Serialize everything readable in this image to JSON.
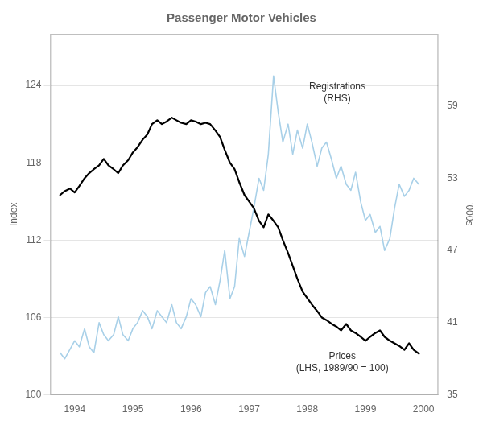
{
  "chart_data": {
    "type": "line",
    "title": "Passenger Motor Vehicles",
    "ylabel": "Index",
    "y2label": "'000s",
    "annotations": [
      "Registrations\n(RHS)",
      "Prices\n(LHS, 1989/90 = 100)"
    ],
    "xlim": [
      1993.58,
      2000.25
    ],
    "xticks": [
      1994,
      1995,
      1996,
      1997,
      1998,
      1999,
      2000
    ],
    "ylim": [
      100,
      128
    ],
    "yticks": [
      100,
      106,
      112,
      118,
      124
    ],
    "y2lim": [
      35,
      65
    ],
    "y2ticks": [
      35,
      41,
      47,
      53,
      59
    ],
    "grid": true,
    "x": [
      1993.75,
      1993.83,
      1993.92,
      1994.0,
      1994.08,
      1994.17,
      1994.25,
      1994.33,
      1994.42,
      1994.5,
      1994.58,
      1994.67,
      1994.75,
      1994.83,
      1994.92,
      1995.0,
      1995.08,
      1995.17,
      1995.25,
      1995.33,
      1995.42,
      1995.5,
      1995.58,
      1995.67,
      1995.75,
      1995.83,
      1995.92,
      1996.0,
      1996.08,
      1996.17,
      1996.25,
      1996.33,
      1996.42,
      1996.5,
      1996.58,
      1996.67,
      1996.75,
      1996.83,
      1996.92,
      1997.0,
      1997.08,
      1997.17,
      1997.25,
      1997.33,
      1997.42,
      1997.5,
      1997.58,
      1997.67,
      1997.75,
      1997.83,
      1997.92,
      1998.0,
      1998.08,
      1998.17,
      1998.25,
      1998.33,
      1998.42,
      1998.5,
      1998.58,
      1998.67,
      1998.75,
      1998.83,
      1998.92,
      1999.0,
      1999.08,
      1999.17,
      1999.25,
      1999.33,
      1999.42,
      1999.5,
      1999.58,
      1999.67,
      1999.75,
      1999.83,
      1999.92
    ],
    "series": [
      {
        "color": "#a8d0e8",
        "axis": "y2",
        "values": [
          38.5,
          38.0,
          38.8,
          39.5,
          39.0,
          40.5,
          39.0,
          38.5,
          41.0,
          40.0,
          39.5,
          40.0,
          41.5,
          40.0,
          39.5,
          40.5,
          41.0,
          42.0,
          41.5,
          40.5,
          42.0,
          41.5,
          41.0,
          42.5,
          41.0,
          40.5,
          41.5,
          43.0,
          42.5,
          41.5,
          43.5,
          44.0,
          42.5,
          44.5,
          47.0,
          43.0,
          44.0,
          48.0,
          46.5,
          48.5,
          50.5,
          53.0,
          52.0,
          55.0,
          61.5,
          58.5,
          56.0,
          57.5,
          55.0,
          57.0,
          55.5,
          57.5,
          56.0,
          54.0,
          55.5,
          56.0,
          54.5,
          53.0,
          54.0,
          52.5,
          52.0,
          53.5,
          51.0,
          49.5,
          50.0,
          48.5,
          49.0,
          47.0,
          48.0,
          50.5,
          52.5,
          51.5,
          52.0,
          53.0,
          52.5
        ]
      },
      {
        "color": "#000000",
        "values": [
          115.5,
          115.8,
          116.0,
          115.7,
          116.2,
          116.8,
          117.2,
          117.5,
          117.8,
          118.3,
          117.8,
          117.5,
          117.2,
          117.8,
          118.2,
          118.8,
          119.2,
          119.8,
          120.2,
          121.0,
          121.3,
          121.0,
          121.2,
          121.5,
          121.3,
          121.1,
          121.0,
          121.3,
          121.2,
          121.0,
          121.1,
          121.0,
          120.5,
          120.0,
          119.0,
          118.0,
          117.5,
          116.5,
          115.5,
          115.0,
          114.5,
          113.5,
          113.0,
          114.0,
          113.5,
          113.0,
          112.0,
          111.0,
          110.0,
          109.0,
          108.0,
          107.5,
          107.0,
          106.5,
          106.0,
          105.8,
          105.5,
          105.3,
          105.0,
          105.5,
          105.0,
          104.8,
          104.5,
          104.2,
          104.5,
          104.8,
          105.0,
          104.5,
          104.2,
          104.0,
          103.8,
          103.5,
          104.0,
          103.5,
          103.2
        ]
      }
    ]
  }
}
